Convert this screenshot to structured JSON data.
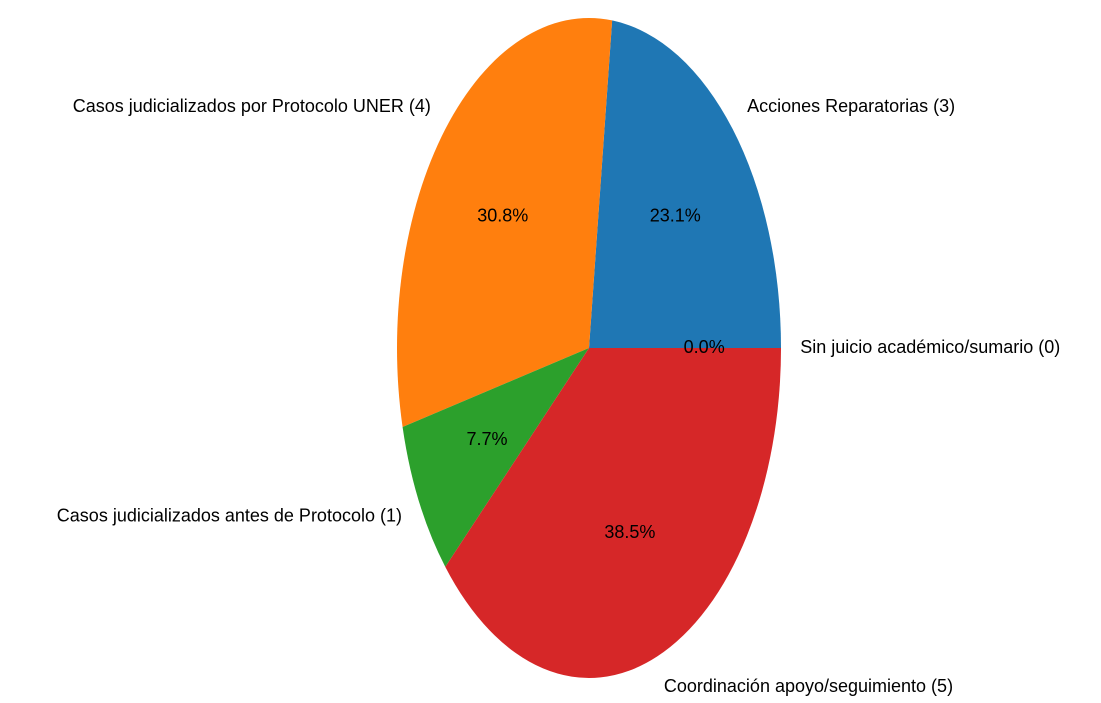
{
  "chart_data": {
    "type": "pie",
    "categories": [
      "Acciones Reparatorias (3)",
      "Casos judicializados por Protocolo UNER (4)",
      "Casos judicializados antes de Protocolo (1)",
      "Coordinación apoyo/seguimiento (5)",
      "Sin juicio académico/sumario (0)"
    ],
    "values": [
      23.1,
      30.8,
      7.7,
      38.5,
      0.0
    ],
    "value_labels": [
      "23.1%",
      "30.8%",
      "7.7%",
      "38.5%",
      "0.0%"
    ],
    "colors": [
      "#1f77b4",
      "#ff7f0e",
      "#2ca02c",
      "#d62728",
      "#9467bd"
    ]
  }
}
